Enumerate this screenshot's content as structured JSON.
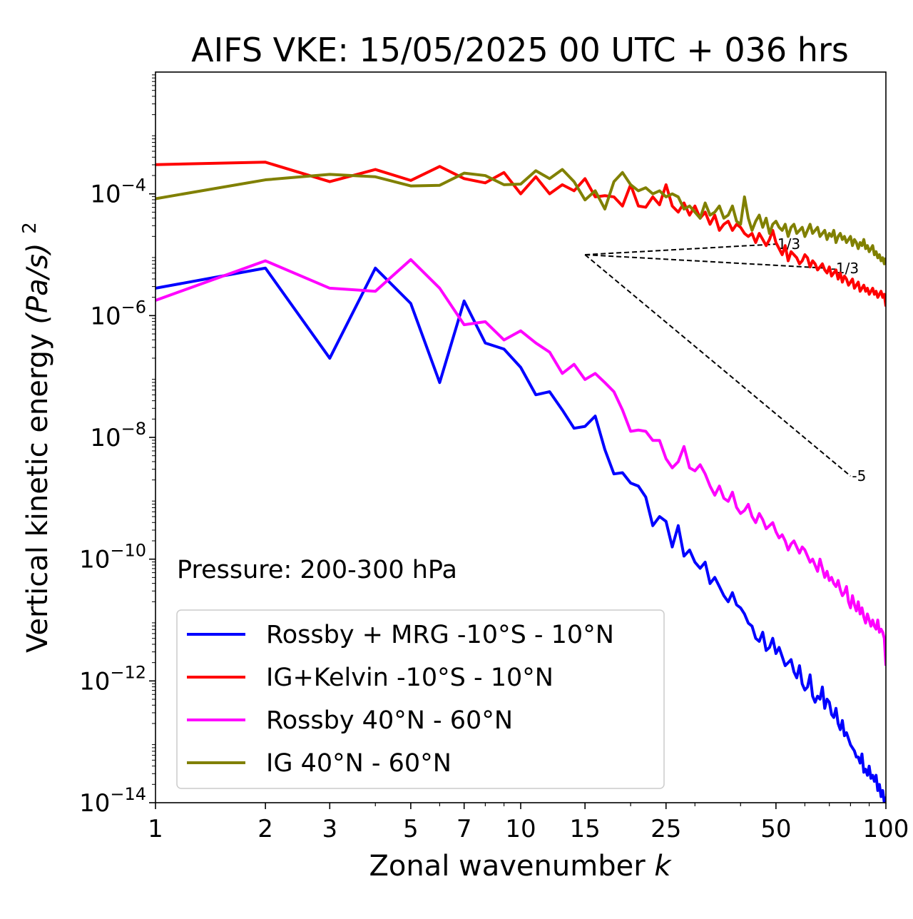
{
  "chart_data": {
    "type": "line",
    "title": "AIFS VKE: 15/05/2025 00 UTC + 036 hrs",
    "xlabel": "Zonal wavenumber",
    "xlabel_italic": "k",
    "ylabel": "Vertical kinetic energy",
    "ylabel_unit": "(Pa/s)",
    "ylabel_exponent": "2",
    "xscale": "log",
    "yscale": "log",
    "xlim": [
      1,
      100
    ],
    "ylim": [
      1e-14,
      0.01
    ],
    "x_ticks": [
      1,
      2,
      3,
      5,
      7,
      10,
      15,
      25,
      50,
      100
    ],
    "x_tick_labels": [
      "1",
      "2",
      "3",
      "5",
      "7",
      "10",
      "15",
      "25",
      "50",
      "100"
    ],
    "y_ticks": [
      -14,
      -12,
      -10,
      -8,
      -6,
      -4
    ],
    "y_tick_base": "10",
    "y_tick_exponents": [
      "−14",
      "−12",
      "−10",
      "−8",
      "−6",
      "−4"
    ],
    "annotation": "Pressure: 200-300 hPa",
    "legend_position": "lower-left",
    "grid": false,
    "series": [
      {
        "name": "Rossby + MRG -10°S - 10°N",
        "color": "#0000ff",
        "log10_values": [
          -5.55,
          -5.22,
          -6.7,
          -5.22,
          -5.8,
          -7.1,
          -5.76,
          -6.45,
          -6.55,
          -6.85,
          -7.3,
          -7.25,
          -7.55,
          -7.85,
          -7.82,
          -7.65,
          -8.2,
          -8.6,
          -8.58,
          -8.75,
          -8.8,
          -8.98,
          -9.45,
          -9.3,
          -9.38,
          -9.8,
          -9.45,
          -9.95,
          -9.85,
          -10.05,
          -10.15,
          -10.05,
          -10.4,
          -10.3,
          -10.45,
          -10.6,
          -10.7,
          -10.55,
          -10.75,
          -10.8,
          -10.9,
          -11.05,
          -11.1,
          -11.3,
          -11.35,
          -11.2,
          -11.5,
          -11.45,
          -11.3,
          -11.55,
          -11.45,
          -11.6,
          -11.75,
          -11.7,
          -11.65,
          -11.85,
          -11.95,
          -11.75,
          -12.05,
          -12.15,
          -12.1,
          -11.9,
          -12.25,
          -12.35,
          -12.25,
          -12.3,
          -12.1,
          -12.45,
          -12.3,
          -12.35,
          -12.55,
          -12.6,
          -12.45,
          -12.7,
          -12.8,
          -12.65,
          -12.9,
          -12.85,
          -12.95,
          -13.05,
          -13.1,
          -13.15,
          -13.25,
          -13.25,
          -13.35,
          -13.2,
          -13.5,
          -13.45,
          -13.55,
          -13.4,
          -13.6,
          -13.55,
          -13.65,
          -13.55,
          -13.8,
          -13.7,
          -13.9,
          -13.8,
          -14.0,
          -13.9
        ]
      },
      {
        "name": "IG+Kelvin -10°S - 10°N",
        "color": "#ff0000",
        "log10_values": [
          -3.52,
          -3.48,
          -3.8,
          -3.6,
          -3.78,
          -3.55,
          -3.75,
          -3.82,
          -3.65,
          -4.0,
          -3.72,
          -4.0,
          -3.85,
          -3.95,
          -3.75,
          -4.05,
          -4.03,
          -4.05,
          -4.2,
          -3.85,
          -4.2,
          -4.22,
          -4.05,
          -4.18,
          -3.85,
          -4.2,
          -4.3,
          -4.15,
          -4.35,
          -4.2,
          -4.4,
          -4.3,
          -4.5,
          -4.35,
          -4.6,
          -4.5,
          -4.45,
          -4.6,
          -4.5,
          -4.55,
          -4.65,
          -4.7,
          -4.65,
          -4.8,
          -4.65,
          -4.75,
          -4.85,
          -4.75,
          -4.6,
          -4.8,
          -4.9,
          -5.0,
          -4.85,
          -5.1,
          -4.95,
          -5.0,
          -5.05,
          -5.15,
          -5.1,
          -5.0,
          -5.05,
          -5.2,
          -5.1,
          -5.15,
          -5.25,
          -5.2,
          -5.15,
          -5.25,
          -5.3,
          -5.2,
          -5.35,
          -5.3,
          -5.25,
          -5.4,
          -5.3,
          -5.45,
          -5.35,
          -5.4,
          -5.5,
          -5.45,
          -5.4,
          -5.55,
          -5.5,
          -5.45,
          -5.6,
          -5.55,
          -5.5,
          -5.6,
          -5.55,
          -5.65,
          -5.6,
          -5.55,
          -5.65,
          -5.6,
          -5.7,
          -5.65,
          -5.6,
          -5.7,
          -5.65,
          -5.85
        ]
      },
      {
        "name": "Rossby 40°N - 60°N",
        "color": "#ff00ff",
        "log10_values": [
          -5.75,
          -5.1,
          -5.55,
          -5.6,
          -5.08,
          -5.55,
          -6.15,
          -6.1,
          -6.4,
          -6.25,
          -6.45,
          -6.6,
          -6.95,
          -6.8,
          -7.05,
          -6.95,
          -7.1,
          -7.25,
          -7.55,
          -7.9,
          -7.88,
          -7.9,
          -8.05,
          -8.05,
          -8.35,
          -8.5,
          -8.4,
          -8.15,
          -8.5,
          -8.55,
          -8.45,
          -8.6,
          -8.8,
          -8.95,
          -8.8,
          -9.0,
          -9.05,
          -8.9,
          -9.15,
          -9.25,
          -9.2,
          -9.1,
          -9.3,
          -9.4,
          -9.25,
          -9.35,
          -9.5,
          -9.45,
          -9.4,
          -9.55,
          -9.65,
          -9.6,
          -9.7,
          -9.85,
          -9.75,
          -9.7,
          -9.8,
          -9.9,
          -9.8,
          -9.85,
          -9.95,
          -10.05,
          -10.0,
          -10.1,
          -10.2,
          -10.0,
          -10.15,
          -10.3,
          -10.2,
          -10.35,
          -10.3,
          -10.4,
          -10.45,
          -10.35,
          -10.5,
          -10.6,
          -10.55,
          -10.45,
          -10.7,
          -10.8,
          -10.6,
          -10.75,
          -10.85,
          -10.7,
          -10.9,
          -10.8,
          -10.95,
          -11.05,
          -10.9,
          -11.0,
          -11.1,
          -11.0,
          -11.1,
          -11.15,
          -11.0,
          -11.2,
          -11.15,
          -11.2,
          -11.3,
          -11.75
        ]
      },
      {
        "name": "IG 40°N - 60°N",
        "color": "#808000",
        "log10_values": [
          -4.08,
          -3.77,
          -3.68,
          -3.72,
          -3.87,
          -3.86,
          -3.66,
          -3.7,
          -3.85,
          -3.84,
          -3.62,
          -3.75,
          -3.6,
          -3.8,
          -4.1,
          -3.95,
          -4.25,
          -3.8,
          -3.65,
          -3.85,
          -3.95,
          -3.9,
          -4.0,
          -3.95,
          -4.05,
          -4.0,
          -4.05,
          -4.25,
          -4.2,
          -4.3,
          -4.4,
          -4.15,
          -4.35,
          -4.3,
          -4.2,
          -4.4,
          -4.35,
          -4.2,
          -4.45,
          -4.5,
          -4.05,
          -4.4,
          -4.6,
          -4.45,
          -4.35,
          -4.55,
          -4.4,
          -4.65,
          -4.5,
          -4.45,
          -4.55,
          -4.6,
          -4.5,
          -4.7,
          -4.55,
          -4.5,
          -4.65,
          -4.6,
          -4.55,
          -4.7,
          -4.6,
          -4.5,
          -4.65,
          -4.6,
          -4.55,
          -4.7,
          -4.65,
          -4.6,
          -4.75,
          -4.65,
          -4.7,
          -4.6,
          -4.8,
          -4.7,
          -4.65,
          -4.75,
          -4.7,
          -4.8,
          -4.75,
          -4.7,
          -4.85,
          -4.75,
          -4.8,
          -4.9,
          -4.8,
          -4.85,
          -4.75,
          -4.9,
          -4.85,
          -4.95,
          -4.9,
          -4.85,
          -5.0,
          -4.95,
          -5.05,
          -5.0,
          -5.1,
          -5.05,
          -5.15,
          -5.05
        ]
      }
    ],
    "reference_slopes": {
      "color": "#000000",
      "origin": [
        15,
        1e-05
      ],
      "lines": [
        {
          "label": "1/3",
          "slope": 0.3333,
          "x_end": 50
        },
        {
          "label": "-1/3",
          "slope": -0.3333,
          "x_end": 70
        },
        {
          "label": "-5",
          "slope": -5,
          "x_end": 80
        }
      ]
    }
  }
}
